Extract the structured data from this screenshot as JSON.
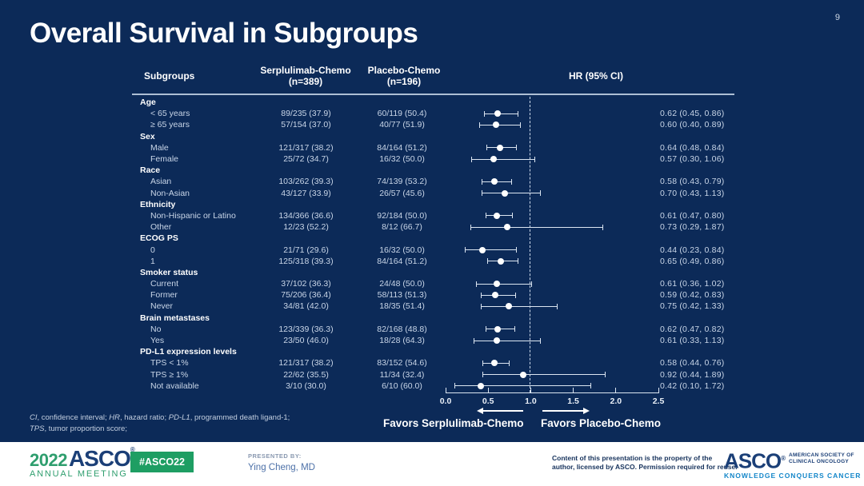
{
  "slide": {
    "page_number": "9",
    "title": "Overall Survival in Subgroups"
  },
  "table_header": {
    "subgroups": "Subgroups",
    "arm1_name": "Serplulimab-Chemo",
    "arm1_n": "(n=389)",
    "arm2_name": "Placebo-Chemo",
    "arm2_n": "(n=196)",
    "hr": "HR (95% CI)"
  },
  "chart_data": {
    "type": "forest",
    "x_axis": {
      "min": 0.0,
      "max": 2.5,
      "tick_labels": [
        "0.0",
        "0.5",
        "1.0",
        "1.5",
        "2.0",
        "2.5"
      ],
      "reference_line": 1.0
    },
    "favors_left": "Favors Serplulimab-Chemo",
    "favors_right": "Favors Placebo-Chemo",
    "columns": [
      "Subgroups",
      "Serplulimab-Chemo (n=389)",
      "Placebo-Chemo (n=196)",
      "HR (95% CI)"
    ],
    "groups": [
      {
        "category": "Age",
        "rows": [
          {
            "label": "< 65 years",
            "arm1": "89/235 (37.9)",
            "arm2": "60/119 (50.4)",
            "hr": 0.62,
            "lo": 0.45,
            "hi": 0.86,
            "hr_text": "0.62 (0.45, 0.86)"
          },
          {
            "label": "≥ 65 years",
            "arm1": "57/154 (37.0)",
            "arm2": "40/77 (51.9)",
            "hr": 0.6,
            "lo": 0.4,
            "hi": 0.89,
            "hr_text": "0.60 (0.40, 0.89)"
          }
        ]
      },
      {
        "category": "Sex",
        "rows": [
          {
            "label": "Male",
            "arm1": "121/317 (38.2)",
            "arm2": "84/164 (51.2)",
            "hr": 0.64,
            "lo": 0.48,
            "hi": 0.84,
            "hr_text": "0.64 (0.48, 0.84)"
          },
          {
            "label": "Female",
            "arm1": "25/72 (34.7)",
            "arm2": "16/32 (50.0)",
            "hr": 0.57,
            "lo": 0.3,
            "hi": 1.06,
            "hr_text": "0.57 (0.30, 1.06)"
          }
        ]
      },
      {
        "category": "Race",
        "rows": [
          {
            "label": "Asian",
            "arm1": "103/262 (39.3)",
            "arm2": "74/139 (53.2)",
            "hr": 0.58,
            "lo": 0.43,
            "hi": 0.79,
            "hr_text": "0.58 (0.43, 0.79)"
          },
          {
            "label": "Non-Asian",
            "arm1": "43/127 (33.9)",
            "arm2": "26/57 (45.6)",
            "hr": 0.7,
            "lo": 0.43,
            "hi": 1.13,
            "hr_text": "0.70 (0.43, 1.13)"
          }
        ]
      },
      {
        "category": "Ethnicity",
        "rows": [
          {
            "label": "Non-Hispanic or Latino",
            "arm1": "134/366 (36.6)",
            "arm2": "92/184 (50.0)",
            "hr": 0.61,
            "lo": 0.47,
            "hi": 0.8,
            "hr_text": "0.61 (0.47, 0.80)"
          },
          {
            "label": "Other",
            "arm1": "12/23 (52.2)",
            "arm2": "8/12 (66.7)",
            "hr": 0.73,
            "lo": 0.29,
            "hi": 1.87,
            "hr_text": "0.73 (0.29, 1.87)"
          }
        ]
      },
      {
        "category": "ECOG PS",
        "rows": [
          {
            "label": "0",
            "arm1": "21/71 (29.6)",
            "arm2": "16/32 (50.0)",
            "hr": 0.44,
            "lo": 0.23,
            "hi": 0.84,
            "hr_text": "0.44 (0.23, 0.84)"
          },
          {
            "label": "1",
            "arm1": "125/318 (39.3)",
            "arm2": "84/164 (51.2)",
            "hr": 0.65,
            "lo": 0.49,
            "hi": 0.86,
            "hr_text": "0.65 (0.49, 0.86)"
          }
        ]
      },
      {
        "category": "Smoker status",
        "rows": [
          {
            "label": "Current",
            "arm1": "37/102 (36.3)",
            "arm2": "24/48 (50.0)",
            "hr": 0.61,
            "lo": 0.36,
            "hi": 1.02,
            "hr_text": "0.61 (0.36, 1.02)"
          },
          {
            "label": "Former",
            "arm1": "75/206 (36.4)",
            "arm2": "58/113 (51.3)",
            "hr": 0.59,
            "lo": 0.42,
            "hi": 0.83,
            "hr_text": "0.59 (0.42, 0.83)"
          },
          {
            "label": "Never",
            "arm1": "34/81 (42.0)",
            "arm2": "18/35 (51.4)",
            "hr": 0.75,
            "lo": 0.42,
            "hi": 1.33,
            "hr_text": "0.75 (0.42, 1.33)"
          }
        ]
      },
      {
        "category": "Brain metastases",
        "rows": [
          {
            "label": "No",
            "arm1": "123/339 (36.3)",
            "arm2": "82/168 (48.8)",
            "hr": 0.62,
            "lo": 0.47,
            "hi": 0.82,
            "hr_text": "0.62 (0.47, 0.82)"
          },
          {
            "label": "Yes",
            "arm1": "23/50 (46.0)",
            "arm2": "18/28 (64.3)",
            "hr": 0.61,
            "lo": 0.33,
            "hi": 1.13,
            "hr_text": "0.61 (0.33, 1.13)"
          }
        ]
      },
      {
        "category": "PD-L1 expression levels",
        "rows": [
          {
            "label": "TPS < 1%",
            "arm1": "121/317 (38.2)",
            "arm2": "83/152 (54.6)",
            "hr": 0.58,
            "lo": 0.44,
            "hi": 0.76,
            "hr_text": "0.58 (0.44, 0.76)"
          },
          {
            "label": "TPS ≥ 1%",
            "arm1": "22/62 (35.5)",
            "arm2": "11/34 (32.4)",
            "hr": 0.92,
            "lo": 0.44,
            "hi": 1.89,
            "hr_text": "0.92 (0.44, 1.89)"
          },
          {
            "label": "Not available",
            "arm1": "3/10 (30.0)",
            "arm2": "6/10 (60.0)",
            "hr": 0.42,
            "lo": 0.1,
            "hi": 1.72,
            "hr_text": "0.42 (0.10, 1.72)"
          }
        ]
      }
    ]
  },
  "footnote": {
    "line1": [
      {
        "t": "CI",
        "i": true
      },
      {
        "t": ", confidence interval; ",
        "i": false
      },
      {
        "t": "HR",
        "i": true
      },
      {
        "t": ", hazard ratio; ",
        "i": false
      },
      {
        "t": "PD-L1",
        "i": true
      },
      {
        "t": ", programmed death ligand-1;",
        "i": false
      }
    ],
    "line2": [
      {
        "t": "TPS",
        "i": true
      },
      {
        "t": ", tumor proportion score;",
        "i": false
      }
    ]
  },
  "footer": {
    "meeting_logo": {
      "year": "2022",
      "org": "ASCO",
      "reg": "®",
      "sub": "ANNUAL MEETING"
    },
    "hashtag": "#ASCO22",
    "presented_by_label": "PRESENTED BY:",
    "presenter": "Ying Cheng, MD",
    "disclaimer_line1": "Content of this presentation is the property of the",
    "disclaimer_line2": "author, licensed by ASCO. Permission required for reuse.",
    "asco_logo": {
      "org": "ASCO",
      "reg": "®",
      "line1": "AMERICAN SOCIETY OF",
      "line2": "CLINICAL ONCOLOGY",
      "tagline": "KNOWLEDGE CONQUERS CANCER"
    }
  },
  "colors": {
    "background": "#0c2a58",
    "accent_green": "#1e9e63",
    "navy": "#1b3f77",
    "teal": "#1386c9",
    "text_light": "#c9d6e8",
    "marker": "#ffffff"
  }
}
